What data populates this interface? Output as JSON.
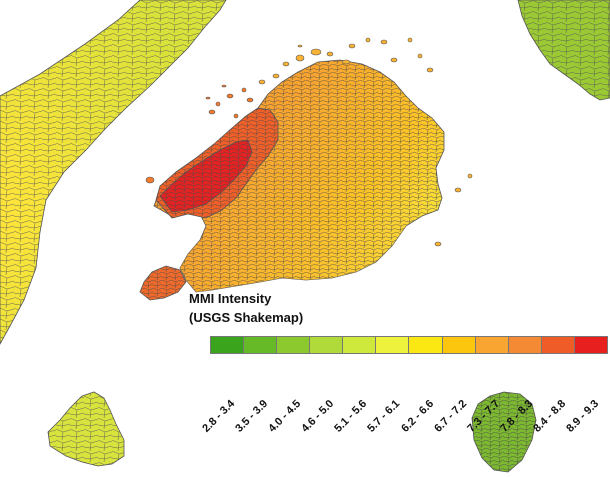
{
  "legend": {
    "title_line1": "MMI Intensity",
    "title_line2": "(USGS Shakemap)",
    "classes": [
      {
        "label": "2.8 - 3.4",
        "color": "#3aa51c"
      },
      {
        "label": "3.5 - 3.9",
        "color": "#66b927"
      },
      {
        "label": "4.0 - 4.5",
        "color": "#8cc92f"
      },
      {
        "label": "4.6 - 5.0",
        "color": "#b0d93a"
      },
      {
        "label": "5.1 - 5.6",
        "color": "#cfe83c"
      },
      {
        "label": "5.7 - 6.1",
        "color": "#edf23c"
      },
      {
        "label": "6.2 - 6.6",
        "color": "#fbe812"
      },
      {
        "label": "6.7 - 7.2",
        "color": "#fcc50e"
      },
      {
        "label": "7.3 - 7.7",
        "color": "#f9a531"
      },
      {
        "label": "7.8 - 8.3",
        "color": "#f48a33"
      },
      {
        "label": "8.4 - 8.8",
        "color": "#ef5c28"
      },
      {
        "label": "8.9 - 9.3",
        "color": "#e81f1f"
      }
    ]
  },
  "map": {
    "regions": [
      {
        "name": "west-island",
        "color": "#dfe23a"
      },
      {
        "name": "central-island",
        "color": "#f7b32e"
      },
      {
        "name": "north-coast-zone",
        "color": "#ef6028"
      },
      {
        "name": "epicentral-zone",
        "color": "#e32222"
      },
      {
        "name": "south-island",
        "color": "#d8e33e"
      },
      {
        "name": "southeast-island",
        "color": "#7cb830"
      },
      {
        "name": "northeast-island",
        "color": "#9ac934"
      }
    ],
    "boundary_color": "#555555"
  }
}
